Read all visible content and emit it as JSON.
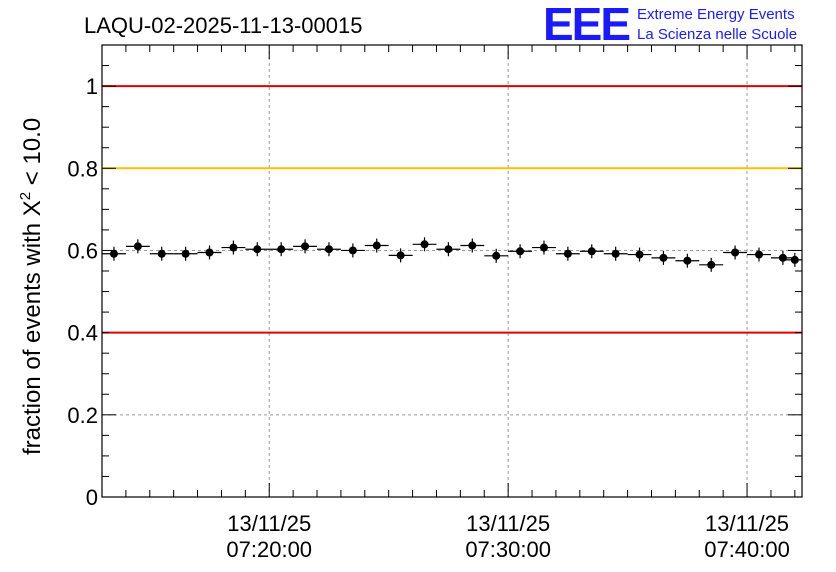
{
  "header": {
    "title": "LAQU-02-2025-11-13-00015",
    "logo_mark": "EEE",
    "logo_line1": "Extreme Energy Events",
    "logo_line2": "La Scienza nelle Scuole"
  },
  "chart_data": {
    "type": "scatter",
    "title": "LAQU-02-2025-11-13-00015",
    "ylabel_prefix": "fraction of events with ",
    "ylabel_symbol": "X",
    "ylabel_sup": "2",
    "ylabel_suffix": " < 10.0",
    "ylim": [
      0,
      1.1
    ],
    "y_ticks": [
      0,
      0.2,
      0.4,
      0.6,
      0.8,
      1
    ],
    "y_tick_labels": [
      "0",
      "0.2",
      "0.4",
      "0.6",
      "0.8",
      "1"
    ],
    "x_unit": "minutes after 07:00:00 on 13/11/25",
    "xlim": [
      13.0,
      42.3
    ],
    "x_ticks": [
      {
        "x": 20,
        "date": "13/11/25",
        "time": "07:20:00"
      },
      {
        "x": 30,
        "date": "13/11/25",
        "time": "07:30:00"
      },
      {
        "x": 40,
        "date": "13/11/25",
        "time": "07:40:00"
      }
    ],
    "grid": true,
    "bin_width": 1.0,
    "reference_lines": [
      {
        "y": 1.0,
        "color": "#e00000"
      },
      {
        "y": 0.8,
        "color": "#ffc000"
      },
      {
        "y": 0.4,
        "color": "#e00000"
      }
    ],
    "series": [
      {
        "marker_color": "#000000",
        "x": [
          13.5,
          14.5,
          15.5,
          16.5,
          17.5,
          18.5,
          19.5,
          20.5,
          21.5,
          22.5,
          23.5,
          24.5,
          25.5,
          26.5,
          27.5,
          28.5,
          29.5,
          30.5,
          31.5,
          32.5,
          33.5,
          34.5,
          35.5,
          36.5,
          37.5,
          38.5,
          39.5,
          40.5,
          41.5,
          42.0
        ],
        "y": [
          0.592,
          0.61,
          0.592,
          0.592,
          0.595,
          0.607,
          0.603,
          0.603,
          0.61,
          0.603,
          0.6,
          0.612,
          0.588,
          0.615,
          0.603,
          0.612,
          0.587,
          0.598,
          0.607,
          0.592,
          0.598,
          0.592,
          0.59,
          0.582,
          0.575,
          0.565,
          0.595,
          0.59,
          0.582,
          0.577
        ]
      }
    ]
  }
}
